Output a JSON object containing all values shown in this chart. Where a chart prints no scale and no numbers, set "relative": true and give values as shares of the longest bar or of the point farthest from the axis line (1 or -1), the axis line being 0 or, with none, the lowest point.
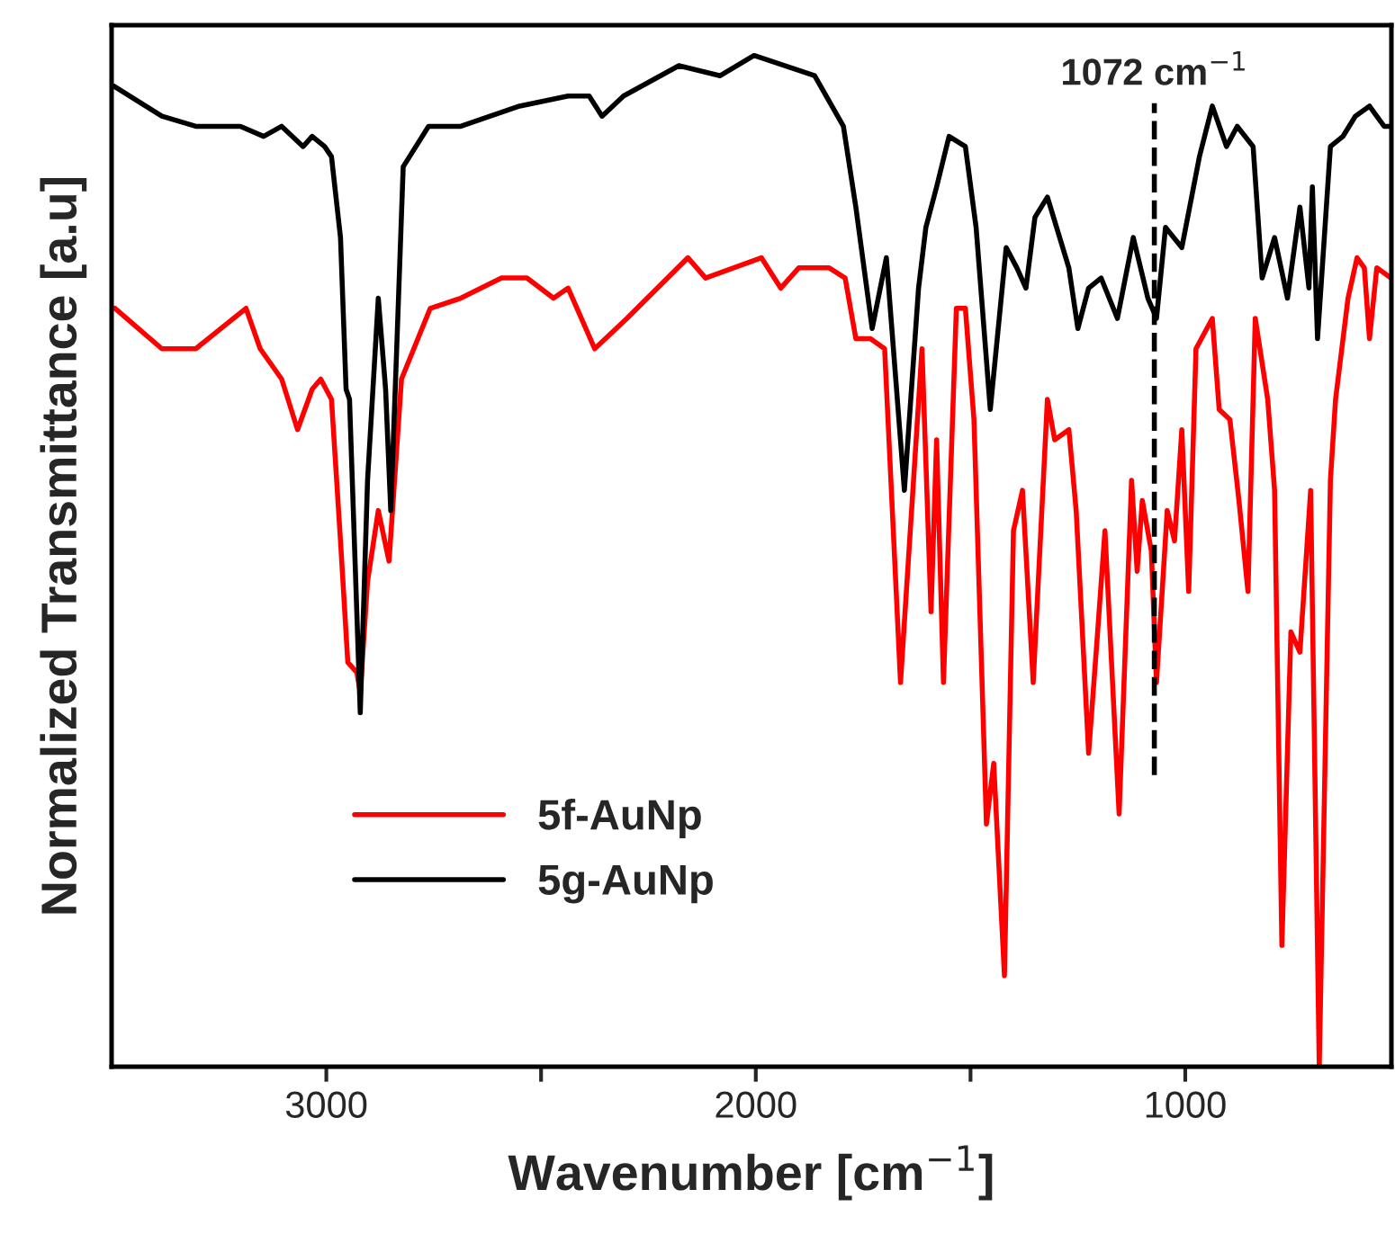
{
  "chart_data": {
    "type": "line",
    "relative": true,
    "xlabel": "Wavenumber [cm$^{−1}$]",
    "ylabel": "Normalized Transmittance [a.u]",
    "xlim": [
      3500,
      520
    ],
    "xticks": [
      3000,
      2000,
      1000,
      {
        "value": 2500,
        "label": null
      },
      {
        "value": 1500,
        "label": null
      }
    ],
    "tick_labels": "x",
    "grid": false,
    "legend": "bottom left",
    "line_style": "solid",
    "marker": "none",
    "ref_lines": [
      {
        "axis": "x",
        "value": 1072,
        "label": "1072 cm$^{−1}$",
        "color": "#000000",
        "line_style": "dashed"
      }
    ],
    "series": [
      {
        "name": "5f-AuNp",
        "color": "#ff0000",
        "x": [
          3492,
          3383,
          3304,
          3187,
          3154,
          3104,
          3067,
          3033,
          3013,
          2988,
          2967,
          2950,
          2929,
          2921,
          2904,
          2879,
          2854,
          2825,
          2758,
          2687,
          2592,
          2533,
          2471,
          2437,
          2375,
          2350,
          2300,
          2229,
          2158,
          2117,
          1987,
          1942,
          1900,
          1829,
          1792,
          1767,
          1733,
          1700,
          1663,
          1613,
          1592,
          1579,
          1563,
          1533,
          1512,
          1492,
          1463,
          1446,
          1421,
          1400,
          1379,
          1354,
          1321,
          1304,
          1271,
          1254,
          1225,
          1204,
          1187,
          1154,
          1125,
          1112,
          1100,
          1079,
          1067,
          1042,
          1025,
          1008,
          992,
          975,
          937,
          921,
          896,
          875,
          854,
          837,
          808,
          792,
          775,
          754,
          733,
          708,
          688,
          662,
          650,
          621,
          600,
          583,
          571,
          554,
          521
        ],
        "values": [
          0.75,
          0.71,
          0.71,
          0.75,
          0.71,
          0.68,
          0.63,
          0.67,
          0.68,
          0.66,
          0.52,
          0.4,
          0.39,
          0.37,
          0.48,
          0.55,
          0.5,
          0.68,
          0.75,
          0.76,
          0.78,
          0.78,
          0.76,
          0.77,
          0.71,
          0.72,
          0.74,
          0.77,
          0.8,
          0.78,
          0.8,
          0.77,
          0.79,
          0.79,
          0.78,
          0.72,
          0.72,
          0.71,
          0.38,
          0.71,
          0.45,
          0.62,
          0.38,
          0.75,
          0.75,
          0.64,
          0.24,
          0.3,
          0.09,
          0.53,
          0.57,
          0.38,
          0.66,
          0.62,
          0.63,
          0.55,
          0.31,
          0.43,
          0.53,
          0.25,
          0.58,
          0.49,
          0.56,
          0.51,
          0.38,
          0.55,
          0.52,
          0.63,
          0.47,
          0.71,
          0.74,
          0.65,
          0.64,
          0.56,
          0.47,
          0.74,
          0.66,
          0.57,
          0.12,
          0.43,
          0.41,
          0.57,
          0.0,
          0.58,
          0.66,
          0.76,
          0.8,
          0.79,
          0.72,
          0.79,
          0.78
        ]
      },
      {
        "name": "5g-AuNp",
        "color": "#000000",
        "x": [
          3496,
          3383,
          3304,
          3200,
          3146,
          3104,
          3054,
          3033,
          3004,
          2988,
          2967,
          2954,
          2946,
          2921,
          2904,
          2879,
          2862,
          2850,
          2837,
          2821,
          2762,
          2687,
          2550,
          2437,
          2388,
          2358,
          2308,
          2179,
          2083,
          2004,
          1863,
          1796,
          1767,
          1729,
          1696,
          1654,
          1621,
          1604,
          1579,
          1550,
          1512,
          1487,
          1454,
          1417,
          1392,
          1371,
          1350,
          1321,
          1271,
          1250,
          1225,
          1196,
          1158,
          1121,
          1087,
          1067,
          1046,
          1008,
          967,
          937,
          904,
          879,
          842,
          821,
          792,
          762,
          733,
          712,
          704,
          692,
          662,
          633,
          604,
          571,
          537,
          521
        ],
        "values": [
          0.97,
          0.94,
          0.93,
          0.93,
          0.92,
          0.93,
          0.91,
          0.92,
          0.91,
          0.9,
          0.82,
          0.67,
          0.66,
          0.35,
          0.58,
          0.76,
          0.67,
          0.55,
          0.7,
          0.89,
          0.93,
          0.93,
          0.95,
          0.96,
          0.96,
          0.94,
          0.96,
          0.99,
          0.98,
          1.0,
          0.98,
          0.93,
          0.85,
          0.73,
          0.8,
          0.57,
          0.77,
          0.83,
          0.87,
          0.92,
          0.91,
          0.83,
          0.65,
          0.81,
          0.79,
          0.77,
          0.84,
          0.86,
          0.79,
          0.73,
          0.77,
          0.78,
          0.74,
          0.82,
          0.76,
          0.74,
          0.83,
          0.81,
          0.9,
          0.95,
          0.91,
          0.93,
          0.91,
          0.78,
          0.82,
          0.76,
          0.85,
          0.77,
          0.87,
          0.72,
          0.91,
          0.92,
          0.94,
          0.95,
          0.93,
          0.93
        ]
      }
    ]
  }
}
